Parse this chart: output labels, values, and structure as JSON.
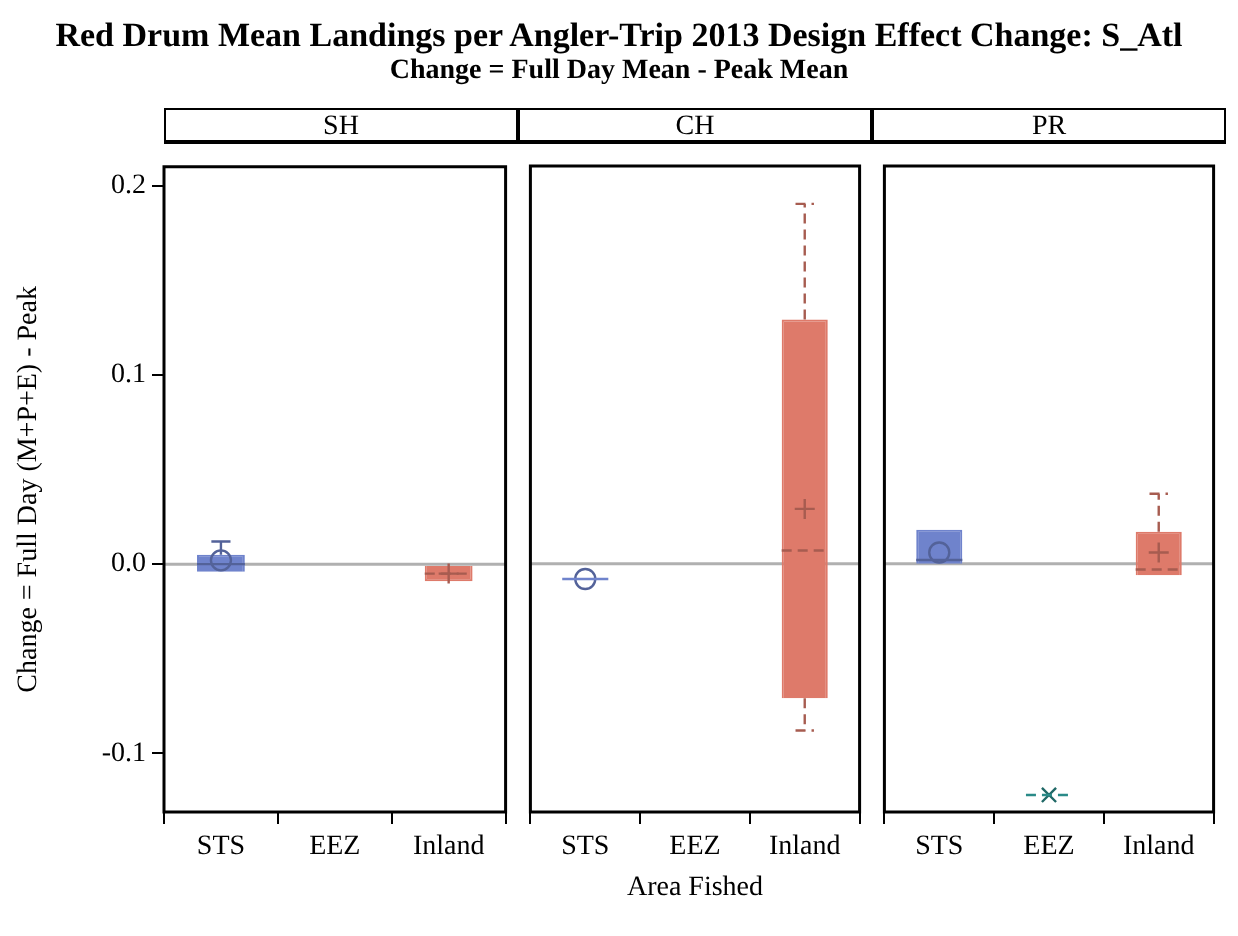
{
  "chart_data": [
    {
      "type": "other",
      "title": "Red Drum Mean Landings per Angler-Trip 2013 Design Effect Change: S_Atl",
      "subtitle": "Change = Full Day Mean - Peak Mean"
    },
    {
      "type": "box",
      "title": "SH",
      "ylabel": "Change = Full Day (M+P+E) - Peak",
      "categories": [
        "STS",
        "EEZ",
        "Inland"
      ],
      "ylim": [
        -0.131,
        0.21
      ],
      "yticks": [
        {
          "value": -0.1,
          "label": "-0.1"
        },
        {
          "value": 0,
          "label": "0.0"
        },
        {
          "value": 0.1,
          "label": "0.1"
        },
        {
          "value": 0.2,
          "label": "0.2"
        }
      ],
      "grid": false,
      "legend": false,
      "ref_lines": [
        {
          "axis": "y",
          "value": 0,
          "label": null,
          "color": "#b0b0b0"
        }
      ],
      "series": [
        {
          "color": "#6f83cc",
          "marker": "circle",
          "line_style": "solid",
          "boxes": [
            {
              "low": -0.004,
              "q1": -0.004,
              "median": 0.0,
              "q3": 0.005,
              "high": 0.012,
              "mean": 0.002
            },
            null,
            null
          ]
        },
        {
          "color": "#de7a6a",
          "marker": "cross",
          "line_style": "dashed",
          "boxes": [
            null,
            null,
            {
              "low": -0.009,
              "q1": -0.009,
              "median": -0.005,
              "q3": -0.001,
              "high": -0.001,
              "mean": -0.005
            }
          ]
        }
      ]
    },
    {
      "type": "box",
      "title": "CH",
      "xlabel": "Area Fished",
      "categories": [
        "STS",
        "EEZ",
        "Inland"
      ],
      "ylim": [
        -0.131,
        0.21
      ],
      "tick_labels": "x",
      "grid": false,
      "legend": false,
      "ref_lines": [
        {
          "axis": "y",
          "value": 0,
          "label": null,
          "color": "#b0b0b0"
        }
      ],
      "series": [
        {
          "color": "#6f83cc",
          "marker": "circle",
          "line_style": "solid",
          "boxes": [
            {
              "low": -0.008,
              "q1": -0.008,
              "median": -0.008,
              "q3": -0.008,
              "high": -0.008,
              "mean": -0.008
            },
            null,
            null
          ]
        },
        {
          "color": "#de7a6a",
          "marker": "cross",
          "line_style": "dashed",
          "boxes": [
            null,
            null,
            {
              "low": -0.088,
              "q1": -0.071,
              "median": 0.007,
              "q3": 0.129,
              "high": 0.19,
              "mean": 0.029
            }
          ]
        }
      ]
    },
    {
      "type": "box",
      "title": "PR",
      "categories": [
        "STS",
        "EEZ",
        "Inland"
      ],
      "ylim": [
        -0.131,
        0.21
      ],
      "tick_labels": "x",
      "grid": false,
      "legend": false,
      "ref_lines": [
        {
          "axis": "y",
          "value": 0,
          "label": null,
          "color": "#b0b0b0"
        }
      ],
      "series": [
        {
          "color": "#6f83cc",
          "marker": "circle",
          "line_style": "solid",
          "boxes": [
            {
              "low": 0.0,
              "q1": 0.0,
              "median": 0.002,
              "q3": 0.018,
              "high": 0.018,
              "mean": 0.006
            },
            null,
            null
          ]
        },
        {
          "color": "#2a8a88",
          "marker": "star",
          "line_style": "dashed",
          "boxes": [
            null,
            {
              "low": -0.122,
              "q1": -0.122,
              "median": -0.122,
              "q3": -0.122,
              "high": -0.122,
              "mean": -0.122
            },
            null
          ]
        },
        {
          "color": "#de7a6a",
          "marker": "cross",
          "line_style": "dashed",
          "boxes": [
            null,
            null,
            {
              "low": -0.006,
              "q1": -0.006,
              "median": -0.003,
              "q3": 0.017,
              "high": 0.037,
              "mean": 0.006
            }
          ]
        }
      ]
    }
  ]
}
